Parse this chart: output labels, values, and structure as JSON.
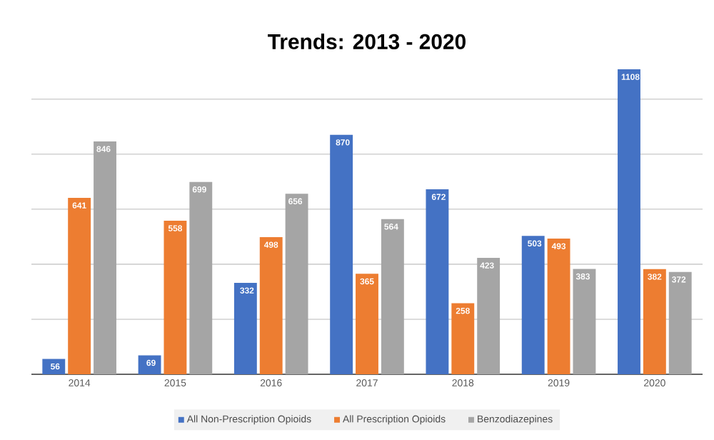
{
  "chart_data": {
    "type": "bar",
    "title": "Trends: 2013 - 2020",
    "categories": [
      "2014",
      "2015",
      "2016",
      "2017",
      "2018",
      "2019",
      "2020"
    ],
    "series": [
      {
        "name": "All Non-Prescription Opioids",
        "color": "#4472c4",
        "values": [
          56,
          69,
          332,
          870,
          672,
          503,
          1108
        ]
      },
      {
        "name": "All Prescription Opioids",
        "color": "#ed7d31",
        "values": [
          641,
          558,
          498,
          365,
          258,
          493,
          382
        ]
      },
      {
        "name": "Benzodiazepines",
        "color": "#a5a5a5",
        "values": [
          846,
          699,
          656,
          564,
          423,
          383,
          372
        ]
      }
    ],
    "grid": "y",
    "legend": "bottom",
    "data_labels": true,
    "tick_labels": "x"
  }
}
